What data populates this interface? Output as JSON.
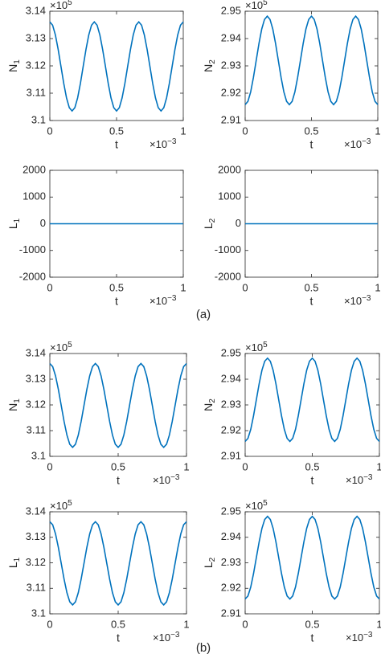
{
  "chart_data": [
    {
      "type": "line",
      "ylabel": {
        "text": "N",
        "subscript": "1"
      },
      "xlabel": "t",
      "y_multiplier": {
        "text": "×10",
        "exponent": "5"
      },
      "x_multiplier": {
        "text": "×10",
        "exponent": "−3"
      },
      "xlim": [
        0,
        1
      ],
      "xticks": [
        0,
        0.5,
        1
      ],
      "ylim": [
        3.1,
        3.14
      ],
      "yticks": [
        3.1,
        3.11,
        3.12,
        3.13,
        3.14
      ],
      "color": "#0072bd",
      "x": [
        0,
        0.0208,
        0.0417,
        0.0625,
        0.0833,
        0.1042,
        0.125,
        0.1458,
        0.1667,
        0.1875,
        0.2083,
        0.2292,
        0.25,
        0.2708,
        0.2917,
        0.3125,
        0.3333,
        0.3542,
        0.375,
        0.3958,
        0.4167,
        0.4375,
        0.4583,
        0.4792,
        0.5,
        0.5208,
        0.5417,
        0.5625,
        0.5833,
        0.6042,
        0.625,
        0.6458,
        0.6667,
        0.6875,
        0.7083,
        0.7292,
        0.75,
        0.7708,
        0.7917,
        0.8125,
        0.8333,
        0.8542,
        0.875,
        0.8958,
        0.9167,
        0.9375,
        0.9583,
        0.9792,
        1
      ],
      "values": [
        3.1361,
        3.1349,
        3.1313,
        3.126,
        3.1198,
        3.1136,
        3.1083,
        3.1047,
        3.1035,
        3.1047,
        3.1083,
        3.1136,
        3.1198,
        3.126,
        3.1313,
        3.1349,
        3.1361,
        3.1349,
        3.1313,
        3.126,
        3.1198,
        3.1136,
        3.1083,
        3.1047,
        3.1035,
        3.1047,
        3.1083,
        3.1136,
        3.1198,
        3.126,
        3.1313,
        3.1349,
        3.1361,
        3.1349,
        3.1313,
        3.126,
        3.1198,
        3.1136,
        3.1083,
        3.1047,
        3.1035,
        3.1047,
        3.1083,
        3.1136,
        3.1198,
        3.126,
        3.1313,
        3.1349,
        3.1361
      ]
    },
    {
      "type": "line",
      "ylabel": {
        "text": "N",
        "subscript": "2"
      },
      "xlabel": "t",
      "y_multiplier": {
        "text": "×10",
        "exponent": "5"
      },
      "x_multiplier": {
        "text": "×10",
        "exponent": "−3"
      },
      "xlim": [
        0,
        1
      ],
      "xticks": [
        0,
        0.5,
        1
      ],
      "ylim": [
        2.91,
        2.95
      ],
      "yticks": [
        2.91,
        2.92,
        2.93,
        2.94,
        2.95
      ],
      "color": "#0072bd",
      "x": [
        0,
        0.0208,
        0.0417,
        0.0625,
        0.0833,
        0.1042,
        0.125,
        0.1458,
        0.1667,
        0.1875,
        0.2083,
        0.2292,
        0.25,
        0.2708,
        0.2917,
        0.3125,
        0.3333,
        0.3542,
        0.375,
        0.3958,
        0.4167,
        0.4375,
        0.4583,
        0.4792,
        0.5,
        0.5208,
        0.5417,
        0.5625,
        0.5833,
        0.6042,
        0.625,
        0.6458,
        0.6667,
        0.6875,
        0.7083,
        0.7292,
        0.75,
        0.7708,
        0.7917,
        0.8125,
        0.8333,
        0.8542,
        0.875,
        0.8958,
        0.9167,
        0.9375,
        0.9583,
        0.9792,
        1
      ],
      "values": [
        2.9158,
        2.917,
        2.9205,
        2.9258,
        2.932,
        2.9382,
        2.9435,
        2.947,
        2.9482,
        2.947,
        2.9435,
        2.9382,
        2.932,
        2.9258,
        2.9205,
        2.917,
        2.9158,
        2.917,
        2.9205,
        2.9258,
        2.932,
        2.9382,
        2.9435,
        2.947,
        2.9482,
        2.947,
        2.9435,
        2.9382,
        2.932,
        2.9258,
        2.9205,
        2.917,
        2.9158,
        2.917,
        2.9205,
        2.9258,
        2.932,
        2.9382,
        2.9435,
        2.947,
        2.9482,
        2.947,
        2.9435,
        2.9382,
        2.932,
        2.9258,
        2.9205,
        2.917,
        2.9158
      ]
    },
    {
      "type": "line",
      "ylabel": {
        "text": "L",
        "subscript": "1"
      },
      "xlabel": "t",
      "x_multiplier": {
        "text": "×10",
        "exponent": "−3"
      },
      "xlim": [
        0,
        1
      ],
      "xticks": [
        0,
        0.5,
        1
      ],
      "ylim": [
        -2000,
        2000
      ],
      "yticks": [
        -2000,
        -1000,
        0,
        1000,
        2000
      ],
      "color": "#0072bd",
      "x": [
        0,
        1
      ],
      "values": [
        0,
        0
      ]
    },
    {
      "type": "line",
      "ylabel": {
        "text": "L",
        "subscript": "2"
      },
      "xlabel": "t",
      "x_multiplier": {
        "text": "×10",
        "exponent": "−3"
      },
      "xlim": [
        0,
        1
      ],
      "xticks": [
        0,
        0.5,
        1
      ],
      "ylim": [
        -2000,
        2000
      ],
      "yticks": [
        -2000,
        -1000,
        0,
        1000,
        2000
      ],
      "color": "#0072bd",
      "x": [
        0,
        1
      ],
      "values": [
        0,
        0
      ]
    },
    {
      "type": "line",
      "ylabel": {
        "text": "N",
        "subscript": "1"
      },
      "xlabel": "t",
      "y_multiplier": {
        "text": "×10",
        "exponent": "5"
      },
      "x_multiplier": {
        "text": "×10",
        "exponent": "−3"
      },
      "xlim": [
        0,
        1
      ],
      "xticks": [
        0,
        0.5,
        1
      ],
      "ylim": [
        3.1,
        3.14
      ],
      "yticks": [
        3.1,
        3.11,
        3.12,
        3.13,
        3.14
      ],
      "color": "#0072bd",
      "x": [
        0,
        0.0208,
        0.0417,
        0.0625,
        0.0833,
        0.1042,
        0.125,
        0.1458,
        0.1667,
        0.1875,
        0.2083,
        0.2292,
        0.25,
        0.2708,
        0.2917,
        0.3125,
        0.3333,
        0.3542,
        0.375,
        0.3958,
        0.4167,
        0.4375,
        0.4583,
        0.4792,
        0.5,
        0.5208,
        0.5417,
        0.5625,
        0.5833,
        0.6042,
        0.625,
        0.6458,
        0.6667,
        0.6875,
        0.7083,
        0.7292,
        0.75,
        0.7708,
        0.7917,
        0.8125,
        0.8333,
        0.8542,
        0.875,
        0.8958,
        0.9167,
        0.9375,
        0.9583,
        0.9792,
        1
      ],
      "values": [
        3.1361,
        3.1349,
        3.1313,
        3.126,
        3.1198,
        3.1136,
        3.1083,
        3.1047,
        3.1035,
        3.1047,
        3.1083,
        3.1136,
        3.1198,
        3.126,
        3.1313,
        3.1349,
        3.1361,
        3.1349,
        3.1313,
        3.126,
        3.1198,
        3.1136,
        3.1083,
        3.1047,
        3.1035,
        3.1047,
        3.1083,
        3.1136,
        3.1198,
        3.126,
        3.1313,
        3.1349,
        3.1361,
        3.1349,
        3.1313,
        3.126,
        3.1198,
        3.1136,
        3.1083,
        3.1047,
        3.1035,
        3.1047,
        3.1083,
        3.1136,
        3.1198,
        3.126,
        3.1313,
        3.1349,
        3.1361
      ]
    },
    {
      "type": "line",
      "ylabel": {
        "text": "N",
        "subscript": "2"
      },
      "xlabel": "t",
      "y_multiplier": {
        "text": "×10",
        "exponent": "5"
      },
      "x_multiplier": {
        "text": "×10",
        "exponent": "−3"
      },
      "xlim": [
        0,
        1
      ],
      "xticks": [
        0,
        0.5,
        1
      ],
      "ylim": [
        2.91,
        2.95
      ],
      "yticks": [
        2.91,
        2.92,
        2.93,
        2.94,
        2.95
      ],
      "color": "#0072bd",
      "x": [
        0,
        0.0208,
        0.0417,
        0.0625,
        0.0833,
        0.1042,
        0.125,
        0.1458,
        0.1667,
        0.1875,
        0.2083,
        0.2292,
        0.25,
        0.2708,
        0.2917,
        0.3125,
        0.3333,
        0.3542,
        0.375,
        0.3958,
        0.4167,
        0.4375,
        0.4583,
        0.4792,
        0.5,
        0.5208,
        0.5417,
        0.5625,
        0.5833,
        0.6042,
        0.625,
        0.6458,
        0.6667,
        0.6875,
        0.7083,
        0.7292,
        0.75,
        0.7708,
        0.7917,
        0.8125,
        0.8333,
        0.8542,
        0.875,
        0.8958,
        0.9167,
        0.9375,
        0.9583,
        0.9792,
        1
      ],
      "values": [
        2.9158,
        2.917,
        2.9205,
        2.9258,
        2.932,
        2.9382,
        2.9435,
        2.947,
        2.9482,
        2.947,
        2.9435,
        2.9382,
        2.932,
        2.9258,
        2.9205,
        2.917,
        2.9158,
        2.917,
        2.9205,
        2.9258,
        2.932,
        2.9382,
        2.9435,
        2.947,
        2.9482,
        2.947,
        2.9435,
        2.9382,
        2.932,
        2.9258,
        2.9205,
        2.917,
        2.9158,
        2.917,
        2.9205,
        2.9258,
        2.932,
        2.9382,
        2.9435,
        2.947,
        2.9482,
        2.947,
        2.9435,
        2.9382,
        2.932,
        2.9258,
        2.9205,
        2.917,
        2.9158
      ]
    },
    {
      "type": "line",
      "ylabel": {
        "text": "L",
        "subscript": "1"
      },
      "xlabel": "t",
      "y_multiplier": {
        "text": "×10",
        "exponent": "5"
      },
      "x_multiplier": {
        "text": "×10",
        "exponent": "−3"
      },
      "xlim": [
        0,
        1
      ],
      "xticks": [
        0,
        0.5,
        1
      ],
      "ylim": [
        3.1,
        3.14
      ],
      "yticks": [
        3.1,
        3.11,
        3.12,
        3.13,
        3.14
      ],
      "color": "#0072bd",
      "x": [
        0,
        0.0208,
        0.0417,
        0.0625,
        0.0833,
        0.1042,
        0.125,
        0.1458,
        0.1667,
        0.1875,
        0.2083,
        0.2292,
        0.25,
        0.2708,
        0.2917,
        0.3125,
        0.3333,
        0.3542,
        0.375,
        0.3958,
        0.4167,
        0.4375,
        0.4583,
        0.4792,
        0.5,
        0.5208,
        0.5417,
        0.5625,
        0.5833,
        0.6042,
        0.625,
        0.6458,
        0.6667,
        0.6875,
        0.7083,
        0.7292,
        0.75,
        0.7708,
        0.7917,
        0.8125,
        0.8333,
        0.8542,
        0.875,
        0.8958,
        0.9167,
        0.9375,
        0.9583,
        0.9792,
        1
      ],
      "values": [
        3.1361,
        3.1349,
        3.1313,
        3.126,
        3.1198,
        3.1136,
        3.1083,
        3.1047,
        3.1035,
        3.1047,
        3.1083,
        3.1136,
        3.1198,
        3.126,
        3.1313,
        3.1349,
        3.1361,
        3.1349,
        3.1313,
        3.126,
        3.1198,
        3.1136,
        3.1083,
        3.1047,
        3.1035,
        3.1047,
        3.1083,
        3.1136,
        3.1198,
        3.126,
        3.1313,
        3.1349,
        3.1361,
        3.1349,
        3.1313,
        3.126,
        3.1198,
        3.1136,
        3.1083,
        3.1047,
        3.1035,
        3.1047,
        3.1083,
        3.1136,
        3.1198,
        3.126,
        3.1313,
        3.1349,
        3.1361
      ]
    },
    {
      "type": "line",
      "ylabel": {
        "text": "L",
        "subscript": "2"
      },
      "xlabel": "t",
      "y_multiplier": {
        "text": "×10",
        "exponent": "5"
      },
      "x_multiplier": {
        "text": "×10",
        "exponent": "−3"
      },
      "xlim": [
        0,
        1
      ],
      "xticks": [
        0,
        0.5,
        1
      ],
      "ylim": [
        2.91,
        2.95
      ],
      "yticks": [
        2.91,
        2.92,
        2.93,
        2.94,
        2.95
      ],
      "color": "#0072bd",
      "x": [
        0,
        0.0208,
        0.0417,
        0.0625,
        0.0833,
        0.1042,
        0.125,
        0.1458,
        0.1667,
        0.1875,
        0.2083,
        0.2292,
        0.25,
        0.2708,
        0.2917,
        0.3125,
        0.3333,
        0.3542,
        0.375,
        0.3958,
        0.4167,
        0.4375,
        0.4583,
        0.4792,
        0.5,
        0.5208,
        0.5417,
        0.5625,
        0.5833,
        0.6042,
        0.625,
        0.6458,
        0.6667,
        0.6875,
        0.7083,
        0.7292,
        0.75,
        0.7708,
        0.7917,
        0.8125,
        0.8333,
        0.8542,
        0.875,
        0.8958,
        0.9167,
        0.9375,
        0.9583,
        0.9792,
        1
      ],
      "values": [
        2.9158,
        2.917,
        2.9205,
        2.9258,
        2.932,
        2.9382,
        2.9435,
        2.947,
        2.9482,
        2.947,
        2.9435,
        2.9382,
        2.932,
        2.9258,
        2.9205,
        2.917,
        2.9158,
        2.917,
        2.9205,
        2.9258,
        2.932,
        2.9382,
        2.9435,
        2.947,
        2.9482,
        2.947,
        2.9435,
        2.9382,
        2.932,
        2.9258,
        2.9205,
        2.917,
        2.9158,
        2.917,
        2.9205,
        2.9258,
        2.932,
        2.9382,
        2.9435,
        2.947,
        2.9482,
        2.947,
        2.9435,
        2.9382,
        2.932,
        2.9258,
        2.9205,
        2.917,
        2.9158
      ]
    }
  ],
  "panel_labels": [
    "(a)",
    "(b)"
  ]
}
